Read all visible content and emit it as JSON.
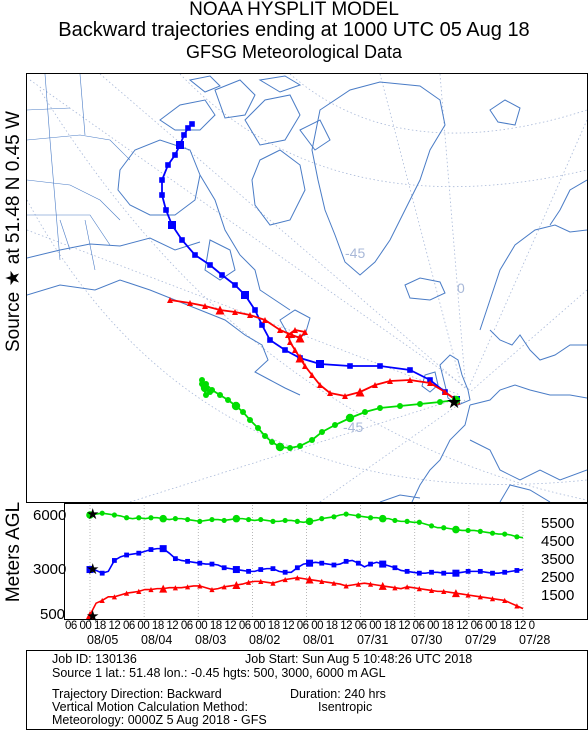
{
  "header": {
    "line1": "NOAA HYSPLIT MODEL",
    "line2": "Backward trajectories ending at 1000 UTC 05 Aug 18",
    "line3": "GFSG Meteorological Data"
  },
  "side_label": "Source ★ at  51.48 N   0.45 W",
  "vertical_axis_label": "Meters AGL",
  "map": {
    "grid_labels": [
      "-45",
      "0",
      "-45"
    ],
    "source_marker": "star",
    "colors": {
      "red": "#ff0000",
      "blue": "#0000ff",
      "green": "#00dd00",
      "coast": "#4a7cc6",
      "grid": "#a8b8d8"
    }
  },
  "chart_data": {
    "type": "line",
    "ylabel": "Meters AGL",
    "y_ticks": [
      "6000",
      "3000",
      "500"
    ],
    "height_labels_right": [
      "5500",
      "4500",
      "3500",
      "2500",
      "1500"
    ],
    "x_hour_labels": "06 00 18 12 06 00 18 12 06 00 18 12 06 00 18 12 06 00 18 12 06 00 18 12 06 00 18 12 06 00 18 12 06 00 18 12 06 00 18 12 06 00",
    "x_date_labels": [
      "08/05",
      "08/04",
      "08/03",
      "08/02",
      "08/01",
      "07/31",
      "07/30",
      "07/29",
      "07/28"
    ],
    "series": [
      {
        "name": "500 m",
        "color": "#ff0000",
        "values": [
          500,
          1150,
          1300,
          1500,
          1500,
          1600,
          1700,
          1750,
          1800,
          1900,
          1900,
          1950,
          1950,
          2000,
          2000,
          2000,
          2050,
          2100,
          2100,
          2000,
          1900,
          1950,
          2050,
          2100,
          2150,
          2200,
          2300,
          2350,
          2350,
          2300,
          2250,
          2350,
          2450,
          2500,
          2550,
          2500,
          2450,
          2400,
          2350,
          2300,
          2250,
          2200,
          2100,
          2150,
          2200,
          2250,
          2200,
          2150,
          2100,
          2050,
          2000,
          1950,
          2050,
          2000,
          1950,
          1900,
          1850,
          1800,
          1800,
          1750,
          1700,
          1650,
          1600,
          1550,
          1500,
          1450,
          1400,
          1350,
          1300,
          1150,
          1000,
          850
        ]
      },
      {
        "name": "3000 m",
        "color": "#0000ff",
        "values": [
          3000,
          2950,
          2800,
          2900,
          3500,
          3700,
          3800,
          3850,
          3900,
          4000,
          4100,
          4150,
          4150,
          3900,
          3600,
          3500,
          3450,
          3400,
          3350,
          3300,
          3300,
          3250,
          3100,
          3050,
          3000,
          2950,
          2900,
          2900,
          3000,
          3050,
          3050,
          2900,
          2850,
          2850,
          3100,
          3300,
          3350,
          3400,
          3350,
          3300,
          3250,
          3300,
          3450,
          3500,
          3350,
          3150,
          3300,
          3400,
          3300,
          3200,
          3100,
          2950,
          2900,
          2850,
          2800,
          2800,
          2850,
          2850,
          2800,
          2800,
          2800,
          2850,
          2900,
          2900,
          2900,
          2850,
          2800,
          2800,
          2850,
          2900,
          2950,
          3000
        ]
      },
      {
        "name": "6000 m",
        "color": "#00dd00",
        "values": [
          6000,
          6050,
          6100,
          6050,
          6000,
          5950,
          5850,
          5800,
          5850,
          5800,
          5850,
          5850,
          5800,
          5750,
          5800,
          5800,
          5750,
          5700,
          5650,
          5700,
          5750,
          5750,
          5700,
          5750,
          5800,
          5800,
          5750,
          5700,
          5750,
          5700,
          5650,
          5650,
          5700,
          5700,
          5650,
          5600,
          5650,
          5700,
          5800,
          5850,
          5900,
          6000,
          6050,
          6000,
          5950,
          5900,
          5850,
          5850,
          5800,
          5800,
          5700,
          5650,
          5650,
          5600,
          5600,
          5500,
          5400,
          5300,
          5300,
          5250,
          5200,
          5150,
          5150,
          5150,
          5100,
          5050,
          5000,
          4950,
          4950,
          4900,
          4800,
          4750
        ]
      }
    ],
    "ylim": [
      0,
      7000
    ]
  },
  "info": {
    "job_id": "Job ID: 130136",
    "job_start": "Job Start: Sun Aug  5 10:48:26 UTC 2018",
    "source": "Source 1 lat.: 51.48  lon.: -0.45  hgts: 500, 3000, 6000 m AGL",
    "direction": "Trajectory Direction: Backward",
    "duration": "Duration: 240 hrs",
    "vertical": "Vertical Motion Calculation Method:",
    "vertical_value": "Isentropic",
    "meteorology": "Meteorology: 0000Z  5 Aug 2018 - GFS"
  }
}
